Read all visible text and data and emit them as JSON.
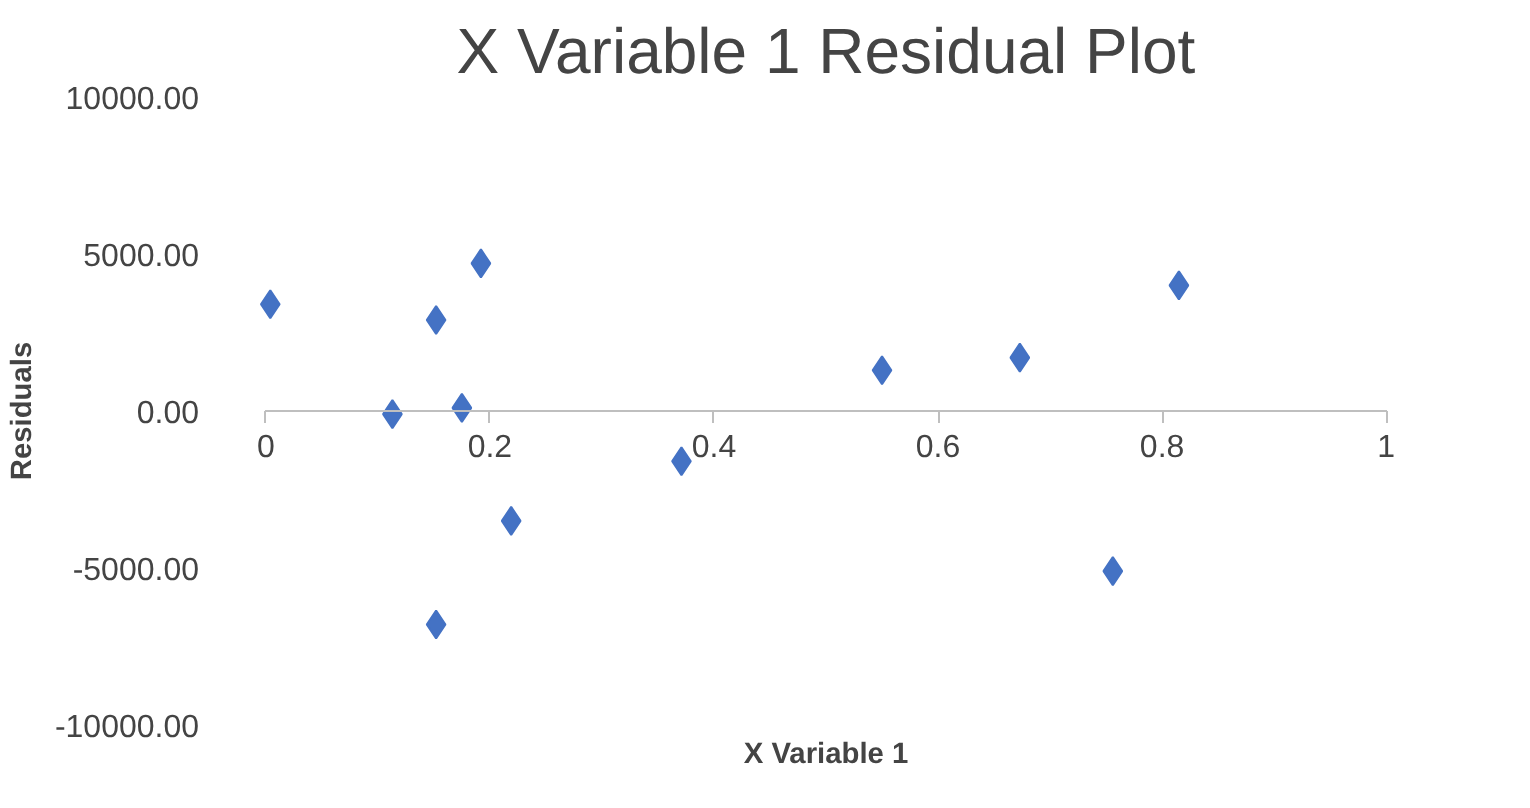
{
  "chart_data": {
    "type": "scatter",
    "title": "X Variable 1 Residual Plot",
    "xlabel": "X Variable 1",
    "ylabel": "Residuals",
    "x": [
      0.004,
      0.113,
      0.152,
      0.192,
      0.175,
      0.219,
      0.152,
      0.371,
      0.55,
      0.673,
      0.756,
      0.815
    ],
    "series": [
      {
        "color": "#4472c4",
        "values": [
          3400,
          -100,
          2900,
          4700,
          100,
          -3500,
          -6800,
          -1600,
          1300,
          1700,
          -5100,
          4000
        ]
      }
    ],
    "marker": "diamond",
    "xlim": [
      0,
      1
    ],
    "ylim": [
      -10000,
      10000
    ],
    "xticks": [
      0,
      0.2,
      0.4,
      0.6,
      0.8,
      1
    ],
    "yticks": [
      {
        "value": -10000,
        "label": "-10000.00"
      },
      {
        "value": -5000,
        "label": "-5000.00"
      },
      {
        "value": 0,
        "label": "0.00"
      },
      {
        "value": 5000,
        "label": "5000.00"
      },
      {
        "value": 10000,
        "label": "10000.00"
      }
    ],
    "grid": false
  }
}
